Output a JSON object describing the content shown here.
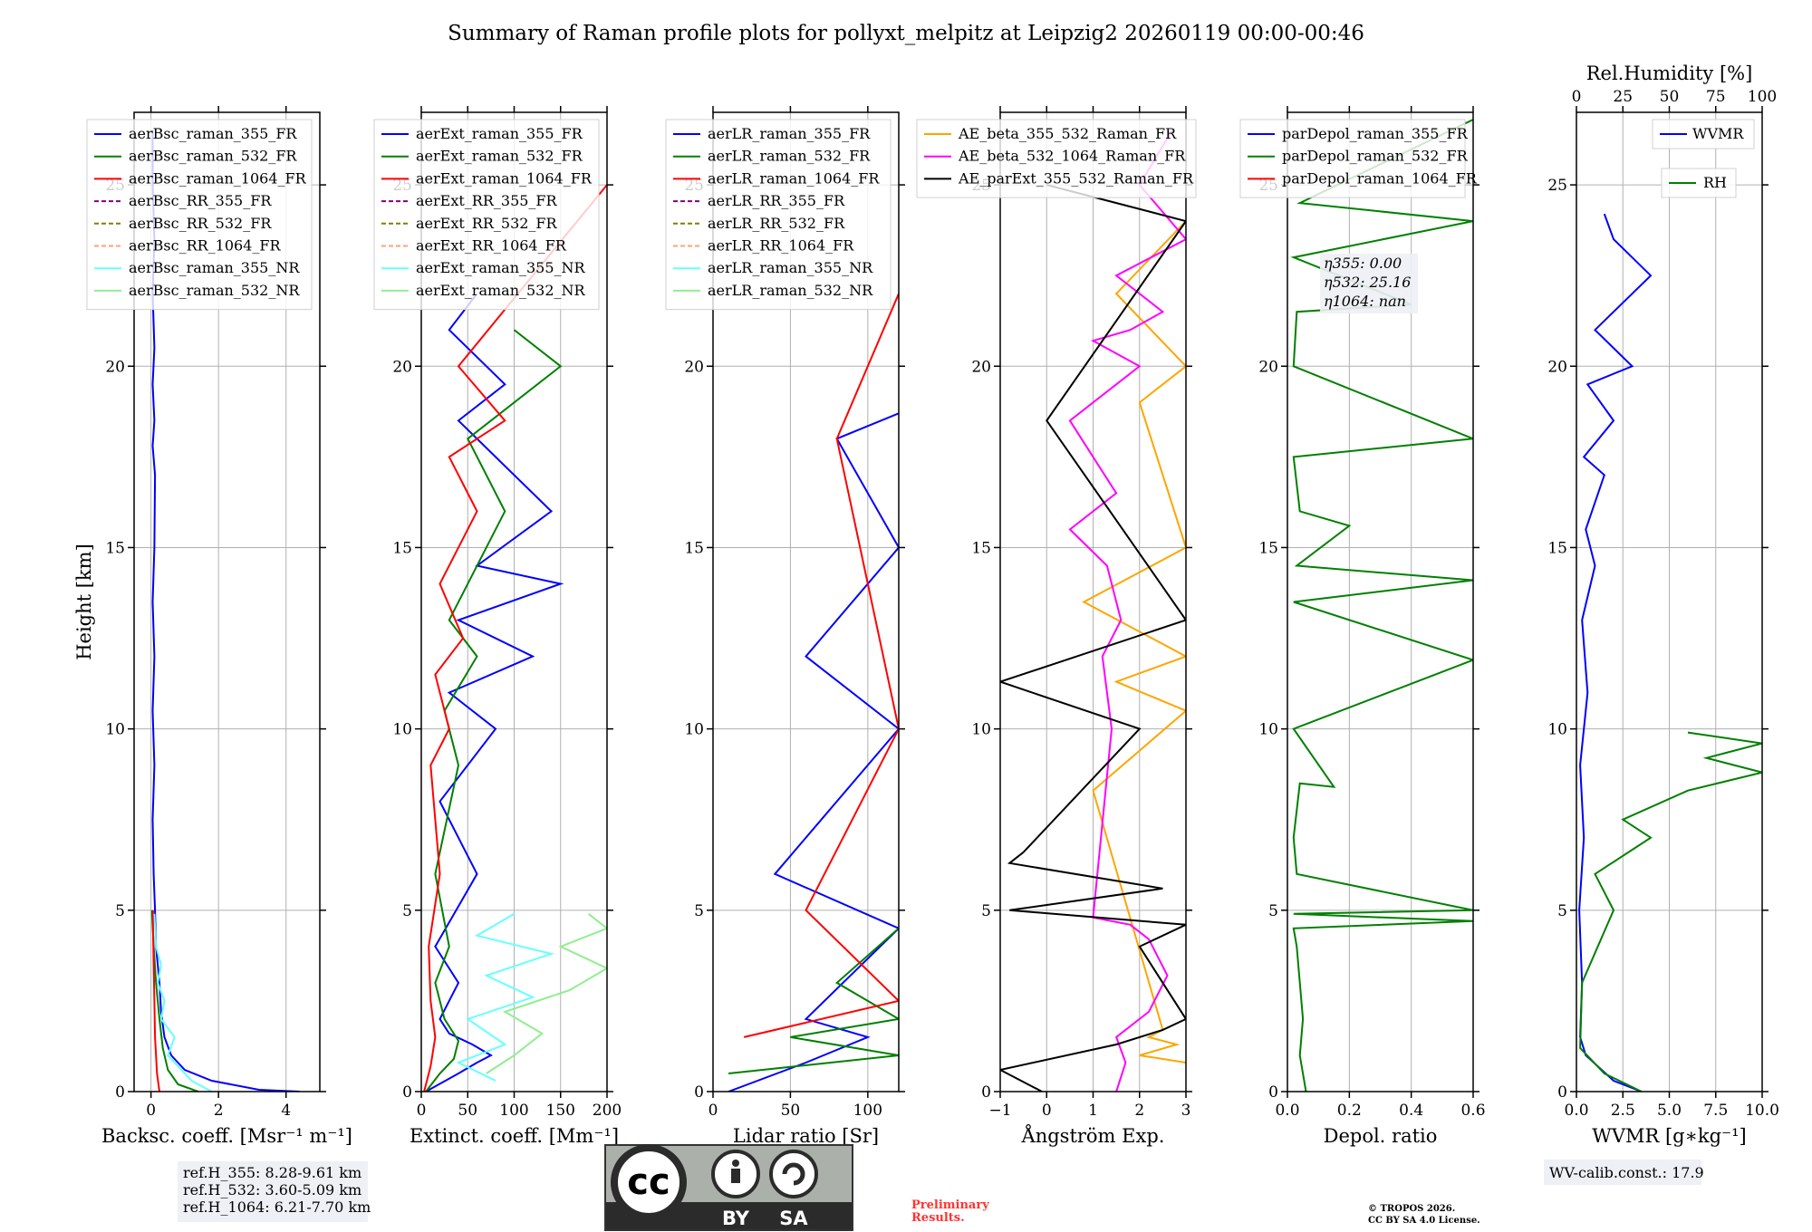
{
  "figure_title": "Summary of Raman profile plots for pollyxt_melpitz at Leipzig2 20260119 00:00-00:46",
  "ylabel": "Height [km]",
  "ylim": [
    0,
    27
  ],
  "yticks": [
    0,
    5,
    10,
    15,
    20,
    25
  ],
  "chart_data": [
    {
      "id": "backscatter",
      "type": "line",
      "xlabel": "Backsc. coeff. [Msr$^{-1}$ m$^{-1}$]",
      "xlabel_display": "Backsc. coeff. [Msr⁻¹ m⁻¹]",
      "xlim": [
        -0.5,
        5
      ],
      "xticks": [
        0,
        2,
        4
      ],
      "grid": true,
      "legend_position": "top-left",
      "legend": [
        {
          "label": "aerBsc_raman_355_FR",
          "color": "#0000ff",
          "style": "solid"
        },
        {
          "label": "aerBsc_raman_532_FR",
          "color": "#008000",
          "style": "solid"
        },
        {
          "label": "aerBsc_raman_1064_FR",
          "color": "#ff0000",
          "style": "solid"
        },
        {
          "label": "aerBsc_RR_355_FR",
          "color": "#800080",
          "style": "dashed"
        },
        {
          "label": "aerBsc_RR_532_FR",
          "color": "#808000",
          "style": "dashed"
        },
        {
          "label": "aerBsc_RR_1064_FR",
          "color": "#ffa07a",
          "style": "dashed"
        },
        {
          "label": "aerBsc_raman_355_NR",
          "color": "#66ffff",
          "style": "solid"
        },
        {
          "label": "aerBsc_raman_532_NR",
          "color": "#90ee90",
          "style": "solid"
        }
      ],
      "series": [
        {
          "name": "aerBsc_raman_355_FR",
          "color": "#0000ff",
          "x": [
            4.4,
            3.2,
            1.8,
            1.0,
            0.6,
            0.4,
            0.3,
            0.25,
            0.15,
            0.12,
            0.08,
            0.05,
            0.1,
            0.05,
            0.1,
            0.05,
            0.1,
            0.12,
            0.05,
            0.1,
            0.05,
            0.1,
            0.05,
            0.1,
            0.05,
            0.05
          ],
          "y": [
            0.0,
            0.05,
            0.3,
            0.6,
            1.0,
            1.5,
            2.2,
            3.0,
            4.0,
            5.0,
            6.0,
            7.5,
            9.0,
            10.5,
            12.0,
            13.5,
            15.0,
            17.0,
            17.8,
            18.5,
            19.5,
            20.5,
            22.0,
            23.5,
            25.0,
            26.5
          ]
        },
        {
          "name": "aerBsc_raman_532_FR",
          "color": "#008000",
          "x": [
            1.4,
            0.8,
            0.5,
            0.35,
            0.25,
            0.15,
            0.08,
            0.04,
            0.03
          ],
          "y": [
            0.0,
            0.2,
            0.6,
            1.2,
            2.0,
            3.0,
            4.0,
            4.8,
            5.0
          ]
        },
        {
          "name": "aerBsc_raman_1064_FR",
          "color": "#ff0000",
          "x": [
            0.25,
            0.18,
            0.12,
            0.1,
            0.08,
            0.06,
            0.06
          ],
          "y": [
            0.0,
            0.5,
            1.5,
            2.5,
            3.5,
            4.5,
            5.0
          ]
        },
        {
          "name": "aerBsc_raman_355_NR",
          "color": "#66ffff",
          "x": [
            1.8,
            1.2,
            0.5,
            0.7,
            0.3,
            0.4,
            0.2,
            0.3,
            0.15,
            0.1
          ],
          "y": [
            0.0,
            0.3,
            1.0,
            1.5,
            2.0,
            2.5,
            3.0,
            3.5,
            4.0,
            4.9
          ]
        }
      ],
      "info_box": [
        "ref.H_355: 8.28-9.61 km",
        "ref.H_532: 3.60-5.09 km",
        "ref.H_1064: 6.21-7.70 km"
      ]
    },
    {
      "id": "extinction",
      "type": "line",
      "xlabel": "Extinct. coeff. [Mm$^{-1}$]",
      "xlabel_display": "Extinct. coeff. [Mm⁻¹]",
      "xlim": [
        0,
        200
      ],
      "xticks": [
        0,
        50,
        100,
        150,
        200
      ],
      "grid": true,
      "legend_position": "top-left",
      "legend": [
        {
          "label": "aerExt_raman_355_FR",
          "color": "#0000ff",
          "style": "solid"
        },
        {
          "label": "aerExt_raman_532_FR",
          "color": "#008000",
          "style": "solid"
        },
        {
          "label": "aerExt_raman_1064_FR",
          "color": "#ff0000",
          "style": "solid"
        },
        {
          "label": "aerExt_RR_355_FR",
          "color": "#800080",
          "style": "dashed"
        },
        {
          "label": "aerExt_RR_532_FR",
          "color": "#808000",
          "style": "dashed"
        },
        {
          "label": "aerExt_RR_1064_FR",
          "color": "#ffa07a",
          "style": "dashed"
        },
        {
          "label": "aerExt_raman_355_NR",
          "color": "#66ffff",
          "style": "solid"
        },
        {
          "label": "aerExt_raman_532_NR",
          "color": "#90ee90",
          "style": "solid"
        }
      ],
      "series": [
        {
          "name": "aerExt_raman_355_FR",
          "color": "#0000ff",
          "x": [
            5,
            40,
            60,
            75,
            55,
            30,
            20,
            40,
            15,
            60,
            20,
            80,
            30,
            120,
            40,
            150,
            60,
            140,
            80,
            40,
            90,
            30,
            60
          ],
          "y": [
            0.0,
            0.5,
            0.8,
            1.0,
            1.3,
            1.6,
            2.0,
            3.0,
            4.0,
            6.0,
            8.0,
            10.0,
            11.0,
            12.0,
            13.0,
            14.0,
            14.5,
            16.0,
            17.5,
            18.5,
            19.5,
            21.0,
            22.0
          ]
        },
        {
          "name": "aerExt_raman_532_FR",
          "color": "#008000",
          "x": [
            5,
            20,
            35,
            40,
            25,
            15,
            30,
            15,
            40,
            25,
            60,
            30,
            70,
            90,
            50,
            150,
            100
          ],
          "y": [
            0.0,
            0.5,
            0.9,
            1.4,
            2.0,
            3.0,
            4.0,
            6.0,
            9.0,
            10.5,
            12.0,
            13.0,
            15.0,
            16.0,
            18.0,
            20.0,
            21.0
          ]
        },
        {
          "name": "aerExt_raman_1064_FR",
          "color": "#ff0000",
          "x": [
            3,
            10,
            15,
            10,
            8,
            20,
            10,
            30,
            15,
            45,
            20,
            60,
            30,
            90,
            40,
            200
          ],
          "y": [
            0.0,
            0.7,
            1.5,
            2.5,
            4.0,
            6.0,
            9.0,
            10.0,
            11.5,
            12.5,
            14.0,
            16.0,
            17.5,
            18.5,
            20.0,
            25.0
          ]
        },
        {
          "name": "aerExt_raman_355_NR",
          "color": "#66ffff",
          "x": [
            80,
            40,
            90,
            50,
            120,
            70,
            140,
            60,
            100
          ],
          "y": [
            0.3,
            0.8,
            1.3,
            2.0,
            2.6,
            3.2,
            3.8,
            4.3,
            4.9
          ]
        },
        {
          "name": "aerExt_raman_532_NR",
          "color": "#90ee90",
          "x": [
            70,
            100,
            130,
            90,
            160,
            200,
            150,
            200,
            180
          ],
          "y": [
            0.5,
            1.0,
            1.6,
            2.2,
            2.8,
            3.4,
            4.0,
            4.5,
            4.9
          ]
        }
      ]
    },
    {
      "id": "lidar-ratio",
      "type": "line",
      "xlabel": "Lidar ratio [Sr]",
      "xlim": [
        0,
        120
      ],
      "xticks": [
        0,
        50,
        100
      ],
      "grid": true,
      "legend_position": "top-left",
      "legend": [
        {
          "label": "aerLR_raman_355_FR",
          "color": "#0000ff",
          "style": "solid"
        },
        {
          "label": "aerLR_raman_532_FR",
          "color": "#008000",
          "style": "solid"
        },
        {
          "label": "aerLR_raman_1064_FR",
          "color": "#ff0000",
          "style": "solid"
        },
        {
          "label": "aerLR_RR_355_FR",
          "color": "#800080",
          "style": "dashed"
        },
        {
          "label": "aerLR_RR_532_FR",
          "color": "#808000",
          "style": "dashed"
        },
        {
          "label": "aerLR_RR_1064_FR",
          "color": "#ffa07a",
          "style": "dashed"
        },
        {
          "label": "aerLR_raman_355_NR",
          "color": "#66ffff",
          "style": "solid"
        },
        {
          "label": "aerLR_raman_532_NR",
          "color": "#90ee90",
          "style": "solid"
        }
      ],
      "series": [
        {
          "name": "aerLR_raman_355_FR",
          "color": "#0000ff",
          "x": [
            10,
            60,
            100,
            60,
            120,
            40,
            120,
            60,
            120,
            80,
            120
          ],
          "y": [
            0.0,
            0.8,
            1.5,
            2.0,
            4.5,
            6.0,
            10.0,
            12.0,
            15.0,
            18.0,
            18.7
          ]
        },
        {
          "name": "aerLR_raman_532_FR",
          "color": "#008000",
          "x": [
            10,
            120,
            50,
            120,
            80,
            120
          ],
          "y": [
            0.5,
            1.0,
            1.5,
            2.0,
            3.0,
            4.5
          ]
        },
        {
          "name": "aerLR_raman_1064_FR",
          "color": "#ff0000",
          "x": [
            20,
            120,
            60,
            120,
            80,
            120
          ],
          "y": [
            1.5,
            2.5,
            5.0,
            10.0,
            18.0,
            22.0
          ]
        }
      ]
    },
    {
      "id": "angstrom",
      "type": "line",
      "xlabel": "Ångström Exp.",
      "xlim": [
        -1,
        3
      ],
      "xticks": [
        -1,
        0,
        1,
        2,
        3
      ],
      "grid": true,
      "legend_position": "top-left",
      "legend": [
        {
          "label": "AE_beta_355_532_Raman_FR",
          "color": "#ffa500",
          "style": "solid"
        },
        {
          "label": "AE_beta_532_1064_Raman_FR",
          "color": "#ff00ff",
          "style": "solid"
        },
        {
          "label": "AE_parExt_355_532_Raman_FR",
          "color": "#000000",
          "style": "solid"
        }
      ],
      "series": [
        {
          "name": "AE_beta_355_532_Raman_FR",
          "color": "#ffa500",
          "x": [
            3.0,
            2.0,
            2.8,
            2.2,
            2.5,
            1.0,
            3.0,
            1.5,
            3.0,
            0.8,
            3.0,
            2.0,
            3.0,
            1.5,
            3.0
          ],
          "y": [
            0.8,
            1.0,
            1.3,
            1.5,
            1.7,
            8.3,
            10.5,
            11.3,
            12.0,
            13.5,
            15.0,
            19.0,
            20.0,
            22.0,
            24.0
          ]
        },
        {
          "name": "AE_beta_532_1064_Raman_FR",
          "color": "#ff00ff",
          "x": [
            1.5,
            1.7,
            1.5,
            2.2,
            2.6,
            2.2,
            1.8,
            1.0,
            1.4,
            1.2,
            1.6,
            1.3,
            0.5,
            1.5,
            1.0,
            0.5,
            1.5,
            2.0,
            1.0,
            1.8,
            2.5,
            1.5,
            3.0,
            2.0,
            2.7
          ],
          "y": [
            0.0,
            0.8,
            1.5,
            2.2,
            3.2,
            4.2,
            4.6,
            4.8,
            10.0,
            12.0,
            13.0,
            14.5,
            15.5,
            16.5,
            17.5,
            18.5,
            19.5,
            20.0,
            20.7,
            21.0,
            21.5,
            22.5,
            23.5,
            25.0,
            26.5
          ]
        },
        {
          "name": "AE_parExt_355_532_Raman_FR",
          "color": "#000000",
          "x": [
            -0.1,
            -1.0,
            1.5,
            2.5,
            3.0,
            2.5,
            2.0,
            3.0,
            -0.8,
            2.5,
            -0.8,
            -0.5,
            2.0,
            -1.0,
            3.0,
            0.0,
            3.0,
            0.0
          ],
          "y": [
            0.0,
            0.6,
            1.3,
            1.7,
            2.0,
            3.0,
            4.0,
            4.6,
            5.0,
            5.6,
            6.3,
            6.6,
            10.0,
            11.3,
            13.0,
            18.5,
            24.0,
            25.0
          ]
        }
      ]
    },
    {
      "id": "depolarization",
      "type": "line",
      "xlabel": "Depol. ratio",
      "xlim": [
        0,
        0.6
      ],
      "xticks": [
        0.0,
        0.2,
        0.4,
        0.6
      ],
      "grid": true,
      "legend_position": "top-left",
      "legend": [
        {
          "label": "parDepol_raman_355_FR",
          "color": "#0000ff",
          "style": "solid"
        },
        {
          "label": "parDepol_raman_532_FR",
          "color": "#008000",
          "style": "solid"
        },
        {
          "label": "parDepol_raman_1064_FR",
          "color": "#ff0000",
          "style": "solid"
        }
      ],
      "series": [
        {
          "name": "parDepol_raman_532_FR",
          "color": "#008000",
          "x": [
            0.06,
            0.04,
            0.05,
            0.04,
            0.03,
            0.02,
            0.6,
            0.02,
            0.6,
            0.03,
            0.02,
            0.04,
            0.15,
            0.02,
            0.6,
            0.02,
            0.6,
            0.03,
            0.2,
            0.04,
            0.02,
            0.6,
            0.02,
            0.03,
            0.4,
            0.02,
            0.6,
            0.04,
            0.6
          ],
          "y": [
            0.0,
            1.0,
            2.0,
            3.0,
            4.0,
            4.5,
            4.7,
            4.9,
            5.0,
            6.0,
            7.0,
            8.5,
            8.4,
            10.0,
            11.9,
            13.5,
            14.1,
            14.5,
            15.6,
            16.0,
            17.5,
            18.0,
            20.0,
            21.5,
            21.7,
            23.0,
            24.0,
            24.5,
            26.8
          ]
        }
      ],
      "annotation": [
        "η355: 0.00",
        "η532: 25.16",
        "η1064: nan"
      ]
    },
    {
      "id": "water-vapor",
      "type": "line",
      "xlabel": "WVMR [$g*kg^{-1}$]",
      "xlabel_display": "WVMR [g∗kg⁻¹]",
      "xlim": [
        0,
        10
      ],
      "xticks": [
        0.0,
        2.5,
        5.0,
        7.5,
        10.0
      ],
      "x2label": "Rel.Humidity [%]",
      "x2lim": [
        0,
        100
      ],
      "x2ticks": [
        0,
        25,
        50,
        75,
        100
      ],
      "grid": true,
      "legend": [
        {
          "label": "WVMR",
          "color": "#0000ff",
          "style": "solid",
          "position": "top-right"
        },
        {
          "label": "RH",
          "color": "#008000",
          "style": "solid",
          "position": "upper-right-2"
        }
      ],
      "series": [
        {
          "name": "WVMR",
          "axis": "bottom",
          "color": "#0000ff",
          "x": [
            3.5,
            2.0,
            0.5,
            0.2,
            0.3,
            0.15,
            0.4,
            0.2,
            0.6,
            0.3,
            1.0,
            0.5,
            1.5,
            0.4,
            2.0,
            0.6,
            3.0,
            1.0,
            4.0,
            2.0,
            1.5
          ],
          "y": [
            0.0,
            0.3,
            1.0,
            1.5,
            3.0,
            5.0,
            7.0,
            9.0,
            11.0,
            13.0,
            14.5,
            15.5,
            17.0,
            17.5,
            18.5,
            19.5,
            20.0,
            21.0,
            22.5,
            23.5,
            24.2
          ]
        },
        {
          "name": "RH",
          "axis": "top",
          "color": "#008000",
          "x": [
            35,
            15,
            2,
            3,
            20,
            10,
            40,
            25,
            60,
            100,
            70,
            100,
            60
          ],
          "y": [
            0.0,
            0.5,
            1.2,
            3.0,
            5.0,
            6.0,
            7.0,
            7.5,
            8.3,
            8.8,
            9.2,
            9.6,
            9.9
          ]
        }
      ],
      "info_box": [
        "WV-calib.const.: 17.9"
      ]
    }
  ],
  "license_badge": {
    "logo_text": "cc",
    "by": "BY",
    "sa": "SA"
  },
  "preliminary": [
    "Preliminary",
    "Results."
  ],
  "copyright": [
    "© TROPOS 2026.",
    "CC BY SA 4.0 License."
  ],
  "colors": {
    "background": "#ffffff",
    "grid": "#b0b0b0",
    "preliminary": "#ff3333"
  }
}
